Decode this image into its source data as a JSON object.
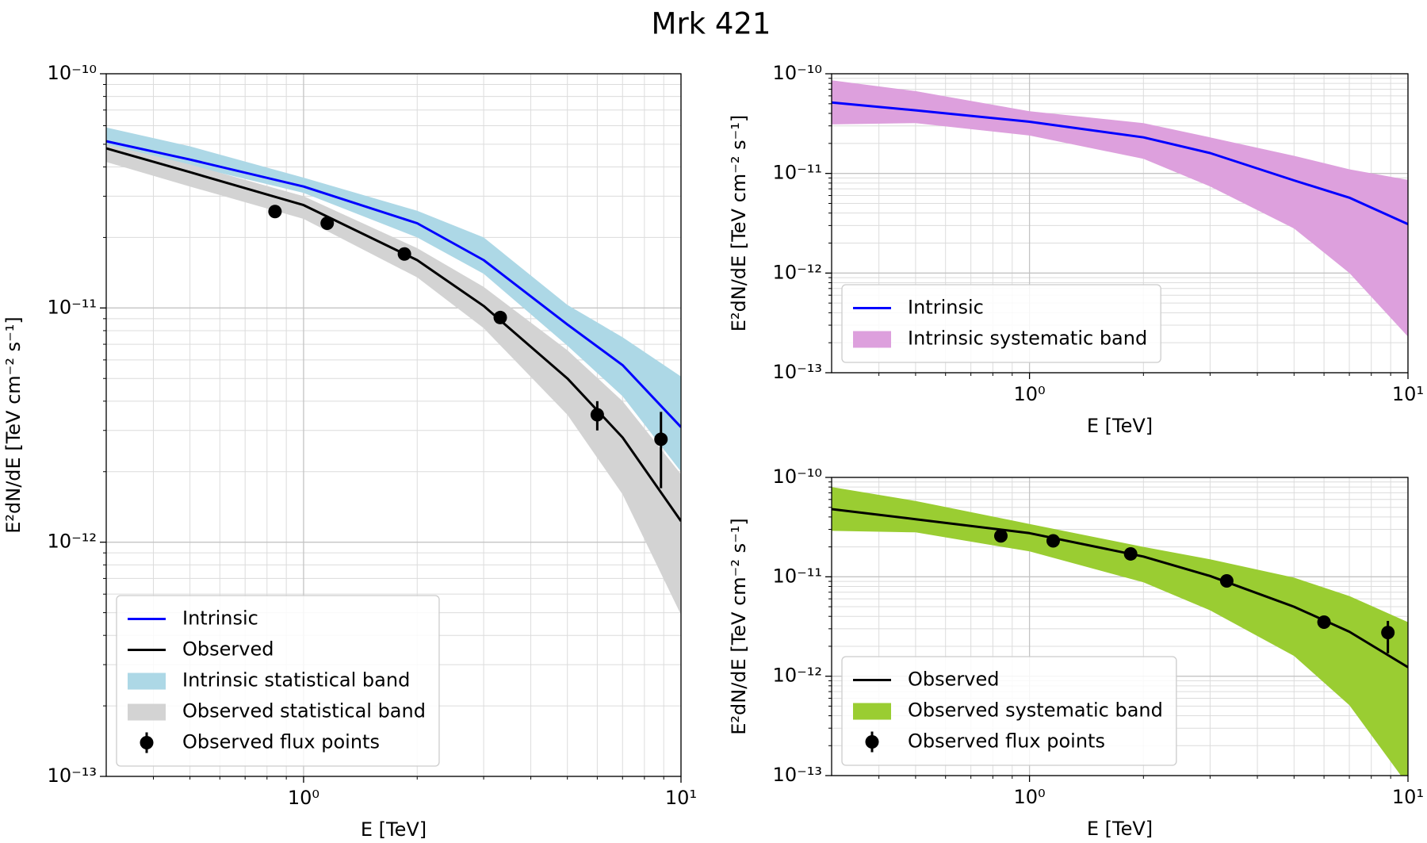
{
  "title": "Mrk 421",
  "chart_data": [
    {
      "type": "line",
      "x_label": "E [TeV]",
      "y_label": "E²dN/dE [TeV cm⁻² s⁻¹]",
      "xscale": "log",
      "yscale": "log",
      "grid": true,
      "legend_loc": "lower left",
      "xlim": [
        0.3,
        10
      ],
      "ylim": [
        1e-13,
        1e-10
      ],
      "xticks": [
        {
          "value": 1,
          "label": "10⁰"
        },
        {
          "value": 10,
          "label": "10¹"
        }
      ],
      "yticks": [
        {
          "value": 1e-13,
          "label": "10⁻¹³"
        },
        {
          "value": 1e-12,
          "label": "10⁻¹²"
        },
        {
          "value": 1e-11,
          "label": "10⁻¹¹"
        },
        {
          "value": 1e-10,
          "label": "10⁻¹⁰"
        }
      ],
      "xticks_minor": [
        0.4,
        0.5,
        0.6,
        0.7,
        0.8,
        0.9,
        2,
        3,
        4,
        5,
        6,
        7,
        8,
        9
      ],
      "yticks_minor": [
        2e-13,
        3e-13,
        4e-13,
        5e-13,
        6e-13,
        7e-13,
        8e-13,
        9e-13,
        2e-12,
        3e-12,
        4e-12,
        5e-12,
        6e-12,
        7e-12,
        8e-12,
        9e-12,
        2e-11,
        3e-11,
        4e-11,
        5e-11,
        6e-11,
        7e-11,
        8e-11,
        9e-11
      ],
      "x": [
        0.3,
        0.5,
        1,
        2,
        3,
        5,
        7,
        10
      ],
      "series": [
        {
          "name": "Intrinsic",
          "color": "#0000ff",
          "values": [
            5.15e-11,
            4.3e-11,
            3.3e-11,
            2.3e-11,
            1.6e-11,
            8.5e-12,
            5.7e-12,
            3.1e-12
          ]
        },
        {
          "name": "Observed",
          "color": "#000000",
          "values": [
            4.8e-11,
            3.8e-11,
            2.75e-11,
            1.6e-11,
            1.02e-11,
            5e-12,
            2.8e-12,
            1.23e-12
          ]
        }
      ],
      "bands": [
        {
          "name": "Intrinsic statistical band",
          "color": "#add8e6",
          "upper": [
            5.9e-11,
            4.9e-11,
            3.6e-11,
            2.6e-11,
            2e-11,
            1.03e-11,
            7.5e-12,
            5.1e-12
          ],
          "lower": [
            4.9e-11,
            4.05e-11,
            3.1e-11,
            2e-11,
            1.4e-11,
            6.9e-12,
            4.2e-12,
            2e-12
          ]
        },
        {
          "name": "Observed statistical band",
          "color": "#d3d3d3",
          "upper": [
            5e-11,
            4.1e-11,
            3e-11,
            1.8e-11,
            1.23e-11,
            6.6e-12,
            4e-12,
            1.95e-12
          ],
          "lower": [
            4.2e-11,
            3.3e-11,
            2.4e-11,
            1.35e-11,
            8.2e-12,
            3.5e-12,
            1.6e-12,
            4.9e-13
          ]
        }
      ],
      "points": {
        "name": "Observed flux points",
        "color": "#000000",
        "x": [
          0.84,
          1.155,
          1.85,
          3.32,
          6.0,
          8.85
        ],
        "values": [
          2.58e-11,
          2.3e-11,
          1.7e-11,
          9.1e-12,
          3.5e-12,
          2.75e-12
        ],
        "yerr_low": [
          8e-13,
          8e-13,
          6e-13,
          4e-13,
          5e-13,
          1.05e-12
        ],
        "yerr_high": [
          8e-13,
          8e-13,
          6e-13,
          4e-13,
          5e-13,
          8.5e-13
        ]
      }
    },
    {
      "type": "line",
      "x_label": "E [TeV]",
      "y_label": "E²dN/dE [TeV cm⁻² s⁻¹]",
      "xscale": "log",
      "yscale": "log",
      "grid": true,
      "legend_loc": "lower left",
      "xlim": [
        0.3,
        10
      ],
      "ylim": [
        1e-13,
        1e-10
      ],
      "xticks": [
        {
          "value": 1,
          "label": "10⁰"
        },
        {
          "value": 10,
          "label": "10¹"
        }
      ],
      "yticks": [
        {
          "value": 1e-13,
          "label": "10⁻¹³"
        },
        {
          "value": 1e-12,
          "label": "10⁻¹²"
        },
        {
          "value": 1e-11,
          "label": "10⁻¹¹"
        },
        {
          "value": 1e-10,
          "label": "10⁻¹⁰"
        }
      ],
      "xticks_minor": [
        0.4,
        0.5,
        0.6,
        0.7,
        0.8,
        0.9,
        2,
        3,
        4,
        5,
        6,
        7,
        8,
        9
      ],
      "yticks_minor": [
        2e-13,
        3e-13,
        4e-13,
        5e-13,
        6e-13,
        7e-13,
        8e-13,
        9e-13,
        2e-12,
        3e-12,
        4e-12,
        5e-12,
        6e-12,
        7e-12,
        8e-12,
        9e-12,
        2e-11,
        3e-11,
        4e-11,
        5e-11,
        6e-11,
        7e-11,
        8e-11,
        9e-11
      ],
      "x": [
        0.3,
        0.5,
        1,
        2,
        3,
        5,
        7,
        10
      ],
      "series": [
        {
          "name": "Intrinsic",
          "color": "#0000ff",
          "values": [
            5.15e-11,
            4.3e-11,
            3.3e-11,
            2.3e-11,
            1.6e-11,
            8.5e-12,
            5.7e-12,
            3.1e-12
          ]
        }
      ],
      "bands": [
        {
          "name": "Intrinsic systematic band",
          "color": "#dda0dd",
          "upper": [
            8.6e-11,
            6.7e-11,
            4.2e-11,
            3.2e-11,
            2.3e-11,
            1.5e-11,
            1.1e-11,
            8.6e-12
          ],
          "lower": [
            3.1e-11,
            3.2e-11,
            2.4e-11,
            1.4e-11,
            7.4e-12,
            2.8e-12,
            1e-12,
            2.3e-13
          ]
        }
      ]
    },
    {
      "type": "line",
      "x_label": "E [TeV]",
      "y_label": "E²dN/dE [TeV cm⁻² s⁻¹]",
      "xscale": "log",
      "yscale": "log",
      "grid": true,
      "legend_loc": "lower left",
      "xlim": [
        0.3,
        10
      ],
      "ylim": [
        1e-13,
        1e-10
      ],
      "xticks": [
        {
          "value": 1,
          "label": "10⁰"
        },
        {
          "value": 10,
          "label": "10¹"
        }
      ],
      "yticks": [
        {
          "value": 1e-13,
          "label": "10⁻¹³"
        },
        {
          "value": 1e-12,
          "label": "10⁻¹²"
        },
        {
          "value": 1e-11,
          "label": "10⁻¹¹"
        },
        {
          "value": 1e-10,
          "label": "10⁻¹⁰"
        }
      ],
      "xticks_minor": [
        0.4,
        0.5,
        0.6,
        0.7,
        0.8,
        0.9,
        2,
        3,
        4,
        5,
        6,
        7,
        8,
        9
      ],
      "yticks_minor": [
        2e-13,
        3e-13,
        4e-13,
        5e-13,
        6e-13,
        7e-13,
        8e-13,
        9e-13,
        2e-12,
        3e-12,
        4e-12,
        5e-12,
        6e-12,
        7e-12,
        8e-12,
        9e-12,
        2e-11,
        3e-11,
        4e-11,
        5e-11,
        6e-11,
        7e-11,
        8e-11,
        9e-11
      ],
      "x": [
        0.3,
        0.5,
        1,
        2,
        3,
        5,
        7,
        10
      ],
      "series": [
        {
          "name": "Observed",
          "color": "#000000",
          "values": [
            4.8e-11,
            3.8e-11,
            2.75e-11,
            1.6e-11,
            1.02e-11,
            5e-12,
            2.8e-12,
            1.23e-12
          ]
        }
      ],
      "bands": [
        {
          "name": "Observed systematic band",
          "color": "#9acd32",
          "upper": [
            8e-11,
            5.8e-11,
            3.4e-11,
            2e-11,
            1.5e-11,
            9.8e-12,
            6.4e-12,
            3.5e-12
          ],
          "lower": [
            2.9e-11,
            2.8e-11,
            1.8e-11,
            8.8e-12,
            4.6e-12,
            1.6e-12,
            5.1e-13,
            8e-14
          ]
        }
      ],
      "points": {
        "name": "Observed flux points",
        "color": "#000000",
        "x": [
          0.84,
          1.155,
          1.85,
          3.32,
          6.0,
          8.85
        ],
        "values": [
          2.58e-11,
          2.3e-11,
          1.7e-11,
          9.1e-12,
          3.5e-12,
          2.75e-12
        ],
        "yerr_low": [
          8e-13,
          8e-13,
          6e-13,
          4e-13,
          5e-13,
          1.05e-12
        ],
        "yerr_high": [
          8e-13,
          8e-13,
          6e-13,
          4e-13,
          5e-13,
          8.5e-13
        ]
      }
    }
  ]
}
